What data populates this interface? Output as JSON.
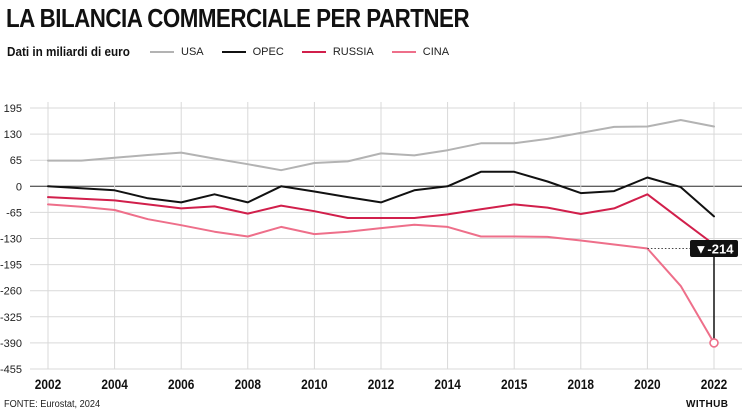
{
  "title": "LA BILANCIA COMMERCIALE PER PARTNER",
  "subtitle": "Dati in miliardi di euro",
  "source": "FONTE: Eurostat, 2024",
  "brand": "WITHUB",
  "chart_data": {
    "type": "line",
    "title": "LA BILANCIA COMMERCIALE PER PARTNER",
    "ylabel": "Dati in miliardi di euro",
    "ylim": [
      -455,
      195
    ],
    "yticks": [
      195,
      130,
      65,
      0,
      -65,
      -130,
      -195,
      -260,
      -325,
      -390,
      -455
    ],
    "xticks": [
      2002,
      2004,
      2006,
      2008,
      2010,
      2012,
      2014,
      2015,
      2018,
      2020,
      2022
    ],
    "x": [
      2002,
      2003,
      2004,
      2005,
      2006,
      2007,
      2008,
      2009,
      2010,
      2011,
      2012,
      2013,
      2014,
      2015,
      2016,
      2017,
      2018,
      2019,
      2020,
      2021,
      2022
    ],
    "series": [
      {
        "name": "USA",
        "color": "#b3b3b3",
        "values": [
          64,
          64,
          71,
          78,
          84,
          69,
          55,
          40,
          58,
          62,
          82,
          77,
          90,
          107,
          107,
          118,
          133,
          148,
          149,
          165,
          149
        ]
      },
      {
        "name": "OPEC",
        "color": "#111111",
        "values": [
          0,
          -5,
          -10,
          -30,
          -40,
          -20,
          -40,
          0,
          -13,
          -27,
          -40,
          -10,
          0,
          36,
          36,
          12,
          -17,
          -12,
          22,
          -2,
          -75
        ]
      },
      {
        "name": "RUSSIA",
        "color": "#d11f4b",
        "values": [
          -27,
          -31,
          -35,
          -45,
          -55,
          -50,
          -68,
          -48,
          -62,
          -79,
          -79,
          -79,
          -70,
          -57,
          -45,
          -53,
          -69,
          -55,
          -20,
          -83,
          -145
        ]
      },
      {
        "name": "CINA",
        "color": "#ee6f8a",
        "values": [
          -45,
          -51,
          -59,
          -82,
          -97,
          -113,
          -125,
          -101,
          -119,
          -113,
          -104,
          -96,
          -101,
          -125,
          -125,
          -126,
          -135,
          -145,
          -155,
          -248,
          -390
        ]
      }
    ],
    "annotation": {
      "label": "▼-214",
      "series": "CINA",
      "year": 2022
    }
  }
}
